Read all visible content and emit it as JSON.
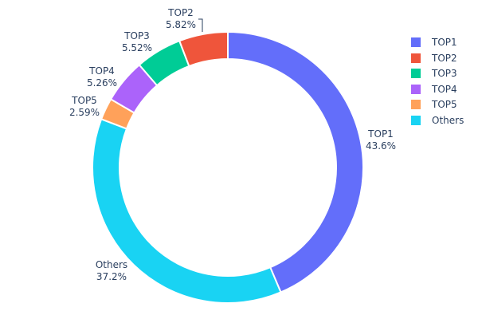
{
  "chart_data": {
    "type": "pie",
    "hole": 0.8,
    "labels": [
      "TOP1",
      "TOP2",
      "TOP3",
      "TOP4",
      "TOP5",
      "Others"
    ],
    "values": [
      43.6,
      5.82,
      5.52,
      5.26,
      2.59,
      37.2
    ],
    "value_labels": [
      "43.6%",
      "5.82%",
      "5.52%",
      "5.26%",
      "2.59%",
      "37.2%"
    ],
    "colors": [
      "#636efa",
      "#ef553b",
      "#00cc96",
      "#ab63fa",
      "#ffa15a",
      "#19d3f3"
    ],
    "direction": "counterclockwise",
    "legend_placement": "top-right",
    "text_position": "outside"
  }
}
